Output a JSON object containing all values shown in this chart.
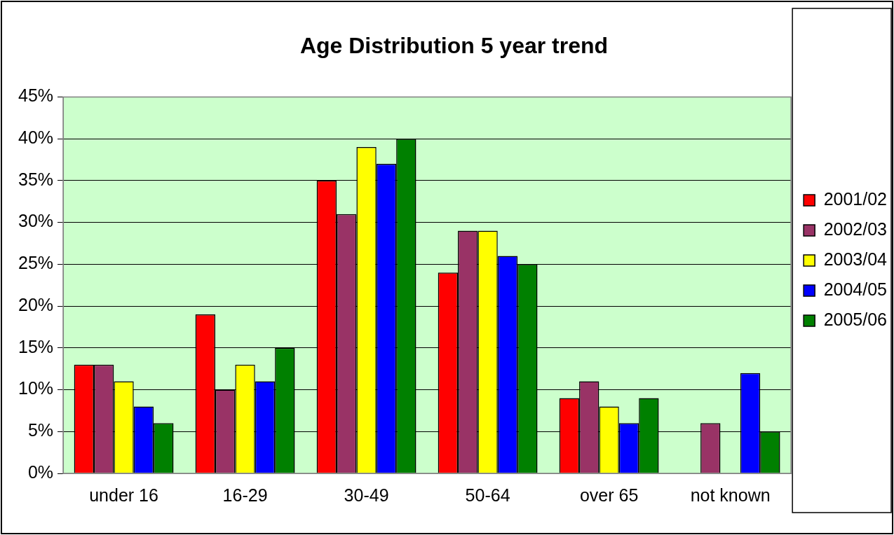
{
  "chart_data": {
    "type": "bar",
    "title": "Age Distribution 5 year trend",
    "categories": [
      "under 16",
      "16-29",
      "30-49",
      "50-64",
      "over 65",
      "not known"
    ],
    "series": [
      {
        "name": "2001/02",
        "color": "#ff0000",
        "values": [
          13,
          19,
          35,
          24,
          9,
          null
        ]
      },
      {
        "name": "2002/03",
        "color": "#993366",
        "values": [
          13,
          10,
          31,
          29,
          11,
          6
        ]
      },
      {
        "name": "2003/04",
        "color": "#ffff00",
        "values": [
          11,
          13,
          39,
          29,
          8,
          null
        ]
      },
      {
        "name": "2004/05",
        "color": "#0000ff",
        "values": [
          8,
          11,
          37,
          26,
          6,
          12
        ]
      },
      {
        "name": "2005/06",
        "color": "#008000",
        "values": [
          6,
          15,
          40,
          25,
          9,
          5
        ]
      }
    ],
    "ylim": [
      0,
      45
    ],
    "yticks": [
      {
        "value": 0,
        "label": "0%"
      },
      {
        "value": 5,
        "label": "5%"
      },
      {
        "value": 10,
        "label": "10%"
      },
      {
        "value": 15,
        "label": "15%"
      },
      {
        "value": 20,
        "label": "20%"
      },
      {
        "value": 25,
        "label": "25%"
      },
      {
        "value": 30,
        "label": "30%"
      },
      {
        "value": 35,
        "label": "35%"
      },
      {
        "value": 40,
        "label": "40%"
      },
      {
        "value": 45,
        "label": "45%"
      }
    ],
    "grid": "y",
    "legend": "right"
  }
}
